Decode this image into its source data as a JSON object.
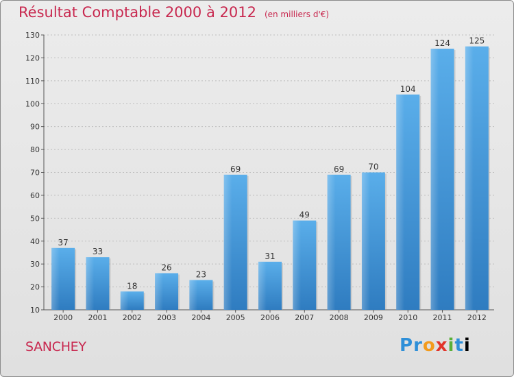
{
  "header": {
    "title": "Résultat Comptable 2000 à 2012",
    "subtitle": "(en milliers d'€)"
  },
  "footer": {
    "town": "SANCHEY",
    "logo_letters": [
      "P",
      "r",
      "o",
      "x",
      "i",
      "t",
      "i"
    ]
  },
  "colors": {
    "bar": "#3a8fd4",
    "title": "#c8284f"
  },
  "chart_data": {
    "type": "bar",
    "title": "Résultat Comptable 2000 à 2012",
    "xlabel": "",
    "ylabel": "",
    "categories": [
      "2000",
      "2001",
      "2002",
      "2003",
      "2004",
      "2005",
      "2006",
      "2007",
      "2008",
      "2009",
      "2010",
      "2011",
      "2012"
    ],
    "values": [
      37,
      33,
      18,
      26,
      23,
      69,
      31,
      49,
      69,
      70,
      104,
      124,
      125
    ],
    "ylim": [
      10,
      130
    ],
    "yticks": [
      10,
      20,
      30,
      40,
      50,
      60,
      70,
      80,
      90,
      100,
      110,
      120,
      130
    ],
    "grid": true
  }
}
